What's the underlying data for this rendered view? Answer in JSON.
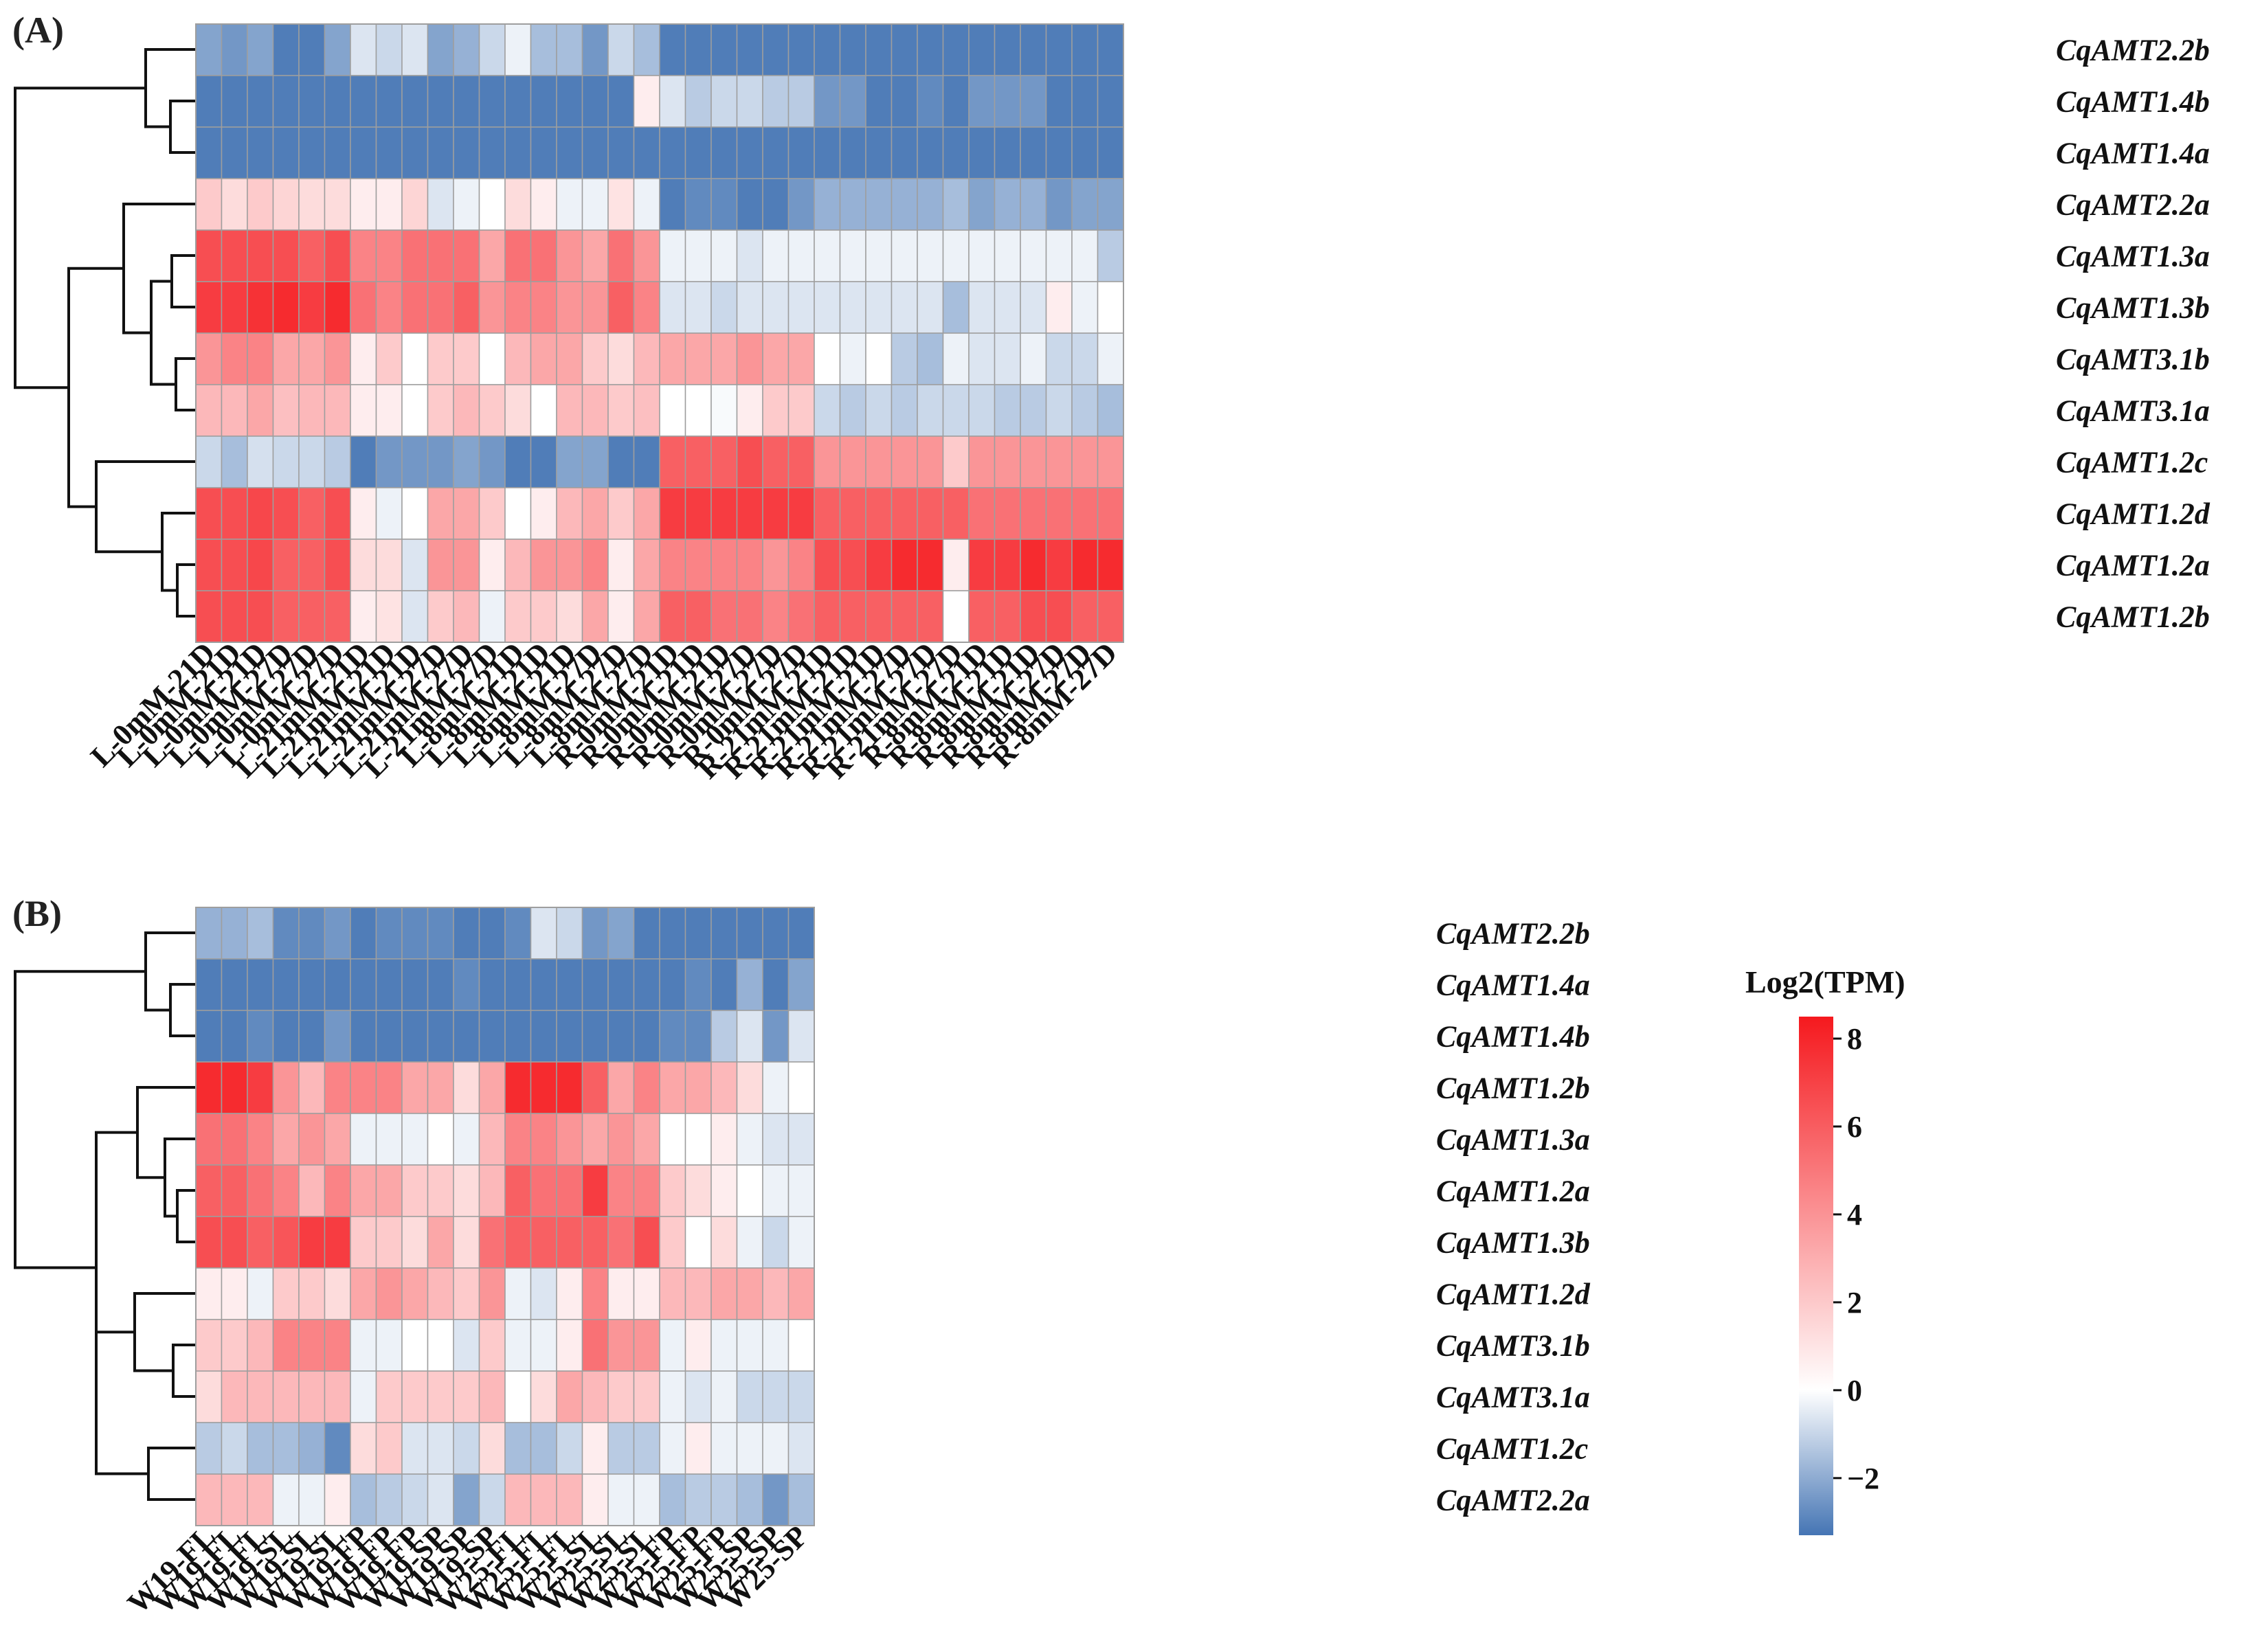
{
  "colors": {
    "low": "#4575b4",
    "mid": "#ffffff",
    "high": "#f5191e",
    "grid": "#9e9e9e",
    "tree": "#111111"
  },
  "chart_data": [
    {
      "type": "heatmap",
      "panel_label": "(A)",
      "rows": [
        "CqAMT2.2b",
        "CqAMT1.4b",
        "CqAMT1.4a",
        "CqAMT2.2a",
        "CqAMT1.3a",
        "CqAMT1.3b",
        "CqAMT3.1b",
        "CqAMT3.1a",
        "CqAMT1.2c",
        "CqAMT1.2d",
        "CqAMT1.2a",
        "CqAMT1.2b"
      ],
      "columns": [
        "L-0mM-21D",
        "L-0mM-21D",
        "L-0mM-21D",
        "L-0mM-27D",
        "L-0mM-27D",
        "L-0mM-27D",
        "L-21mM-21D",
        "L-21mM-21D",
        "L-21mM-21D",
        "L-21mM-27D",
        "L-21mM-27D",
        "L-21mM-27D",
        "L-8mM-21D",
        "L-8mM-21D",
        "L-8mM-21D",
        "L-8mM-27D",
        "L-8mM-27D",
        "L-8mM-27D",
        "R-0mM-21D",
        "R-0mM-21D",
        "R-0mM-21D",
        "R-0mM-27D",
        "R-0mM-27D",
        "R-0mM-27D",
        "R-21mM-21D",
        "R-21mM-21D",
        "R-21mM-21D",
        "R-21mM-27D",
        "R-21mM-27D",
        "R-21mM-27D",
        "R-8mM-21D",
        "R-8mM-21D",
        "R-8mM-21D",
        "R-8mM-27D",
        "R-8mM-27D",
        "R-8mM-27D"
      ],
      "values": [
        [
          -1.5,
          -2.0,
          -1.5,
          -3.0,
          -3.0,
          -1.5,
          1.0,
          0.5,
          1.0,
          -1.5,
          -1.0,
          0.5,
          1.5,
          -0.5,
          -0.5,
          -2.0,
          0.5,
          -0.5,
          -3.0,
          -3.0,
          -3.0,
          -3.0,
          -3.0,
          -3.0,
          -3.0,
          -3.0,
          -3.0,
          -3.0,
          -3.0,
          -3.0,
          -3.0,
          -3.0,
          -3.0,
          -3.0,
          -3.0,
          -3.0
        ],
        [
          -3.0,
          -3.0,
          -3.0,
          -3.0,
          -3.0,
          -3.0,
          -3.0,
          -3.0,
          -3.0,
          -3.0,
          -3.0,
          -3.0,
          -3.0,
          -3.0,
          -3.0,
          -3.0,
          -3.0,
          2.5,
          1.0,
          0.0,
          0.5,
          0.5,
          0.0,
          0.0,
          -2.0,
          -2.0,
          -3.0,
          -3.0,
          -2.5,
          -3.0,
          -2.0,
          -2.0,
          -2.0,
          -3.0,
          -3.0,
          -3.0
        ],
        [
          -3.0,
          -3.0,
          -3.0,
          -3.0,
          -3.0,
          -3.0,
          -3.0,
          -3.0,
          -3.0,
          -3.0,
          -3.0,
          -3.0,
          -3.0,
          -3.0,
          -3.0,
          -3.0,
          -3.0,
          -3.0,
          -3.0,
          -3.0,
          -3.0,
          -3.0,
          -3.0,
          -3.0,
          -3.0,
          -3.0,
          -3.0,
          -3.0,
          -3.0,
          -3.0,
          -3.0,
          -3.0,
          -3.0,
          -3.0,
          -3.0,
          -3.0
        ],
        [
          3.5,
          3.0,
          3.5,
          3.2,
          3.0,
          3.0,
          2.5,
          2.5,
          3.2,
          1.0,
          1.5,
          2.0,
          3.0,
          2.5,
          1.5,
          1.5,
          2.8,
          1.5,
          -3.0,
          -2.5,
          -2.5,
          -3.0,
          -3.0,
          -2.0,
          -1.0,
          -1.0,
          -1.0,
          -1.0,
          -1.0,
          -0.5,
          -1.5,
          -1.0,
          -1.0,
          -2.0,
          -1.5,
          -1.5
        ],
        [
          7.0,
          7.0,
          7.0,
          7.0,
          6.5,
          7.0,
          5.5,
          5.5,
          6.0,
          6.0,
          6.0,
          4.5,
          6.0,
          6.0,
          5.0,
          4.5,
          6.0,
          5.0,
          1.5,
          1.5,
          1.5,
          1.0,
          1.5,
          1.5,
          1.5,
          1.5,
          1.5,
          1.5,
          1.5,
          1.5,
          1.5,
          1.5,
          1.5,
          1.5,
          1.5,
          0.0
        ],
        [
          7.5,
          7.5,
          7.8,
          8.0,
          7.5,
          8.0,
          6.0,
          5.5,
          6.0,
          6.0,
          6.5,
          5.0,
          5.5,
          5.5,
          5.0,
          5.0,
          6.5,
          5.5,
          1.0,
          1.0,
          0.5,
          1.0,
          1.0,
          1.0,
          1.0,
          1.0,
          1.0,
          1.0,
          1.0,
          -0.5,
          1.0,
          1.0,
          1.0,
          2.5,
          1.5,
          2.0
        ],
        [
          5.0,
          5.5,
          5.5,
          4.5,
          4.5,
          5.0,
          2.5,
          3.5,
          2.0,
          3.5,
          3.5,
          2.0,
          4.0,
          4.5,
          4.5,
          3.5,
          3.0,
          4.0,
          4.5,
          4.5,
          4.5,
          5.0,
          4.5,
          4.5,
          2.0,
          1.5,
          2.0,
          0.0,
          -0.5,
          1.5,
          1.0,
          1.0,
          1.5,
          0.5,
          0.5,
          1.5
        ],
        [
          4.0,
          4.0,
          4.5,
          3.8,
          4.0,
          4.0,
          2.5,
          2.5,
          2.0,
          3.5,
          4.0,
          3.5,
          3.0,
          2.0,
          4.0,
          4.0,
          3.5,
          3.8,
          2.0,
          2.0,
          1.8,
          2.5,
          3.5,
          3.5,
          0.5,
          0.0,
          0.5,
          0.0,
          0.5,
          0.5,
          0.5,
          0.0,
          0.0,
          0.5,
          0.0,
          -0.5
        ],
        [
          0.5,
          -0.5,
          0.8,
          0.5,
          0.5,
          0.0,
          -3.0,
          -2.0,
          -2.0,
          -2.0,
          -1.5,
          -2.0,
          -3.0,
          -3.0,
          -1.5,
          -1.5,
          -3.0,
          -3.0,
          6.5,
          6.5,
          6.5,
          7.0,
          6.5,
          6.5,
          5.0,
          5.0,
          5.0,
          5.0,
          5.0,
          3.5,
          5.0,
          5.0,
          5.0,
          5.0,
          5.0,
          5.0
        ],
        [
          7.0,
          7.0,
          7.2,
          7.0,
          6.5,
          7.0,
          2.5,
          1.5,
          2.0,
          4.5,
          4.5,
          3.5,
          2.0,
          2.5,
          4.0,
          4.5,
          3.5,
          4.5,
          7.5,
          7.5,
          7.5,
          7.5,
          7.5,
          7.5,
          6.5,
          6.5,
          6.5,
          6.5,
          6.5,
          6.5,
          6.0,
          6.0,
          6.0,
          6.0,
          6.0,
          6.0
        ],
        [
          7.0,
          7.0,
          7.2,
          6.5,
          6.5,
          7.0,
          3.0,
          3.0,
          1.0,
          5.0,
          5.0,
          2.5,
          4.0,
          5.0,
          5.0,
          5.5,
          2.5,
          4.5,
          5.5,
          5.5,
          5.5,
          5.5,
          5.0,
          5.5,
          7.0,
          7.0,
          7.5,
          8.0,
          8.0,
          2.5,
          7.5,
          7.5,
          8.0,
          7.5,
          8.0,
          8.0
        ],
        [
          7.0,
          7.0,
          7.0,
          6.5,
          6.5,
          6.5,
          2.5,
          2.8,
          1.0,
          3.5,
          4.0,
          1.5,
          3.5,
          3.5,
          3.0,
          4.5,
          2.5,
          4.5,
          6.5,
          6.5,
          6.0,
          6.0,
          5.5,
          6.0,
          6.5,
          6.5,
          6.5,
          6.5,
          6.5,
          2.0,
          6.5,
          6.5,
          7.0,
          7.0,
          6.5,
          6.5
        ]
      ]
    },
    {
      "type": "heatmap",
      "panel_label": "(B)",
      "rows": [
        "CqAMT2.2b",
        "CqAMT1.4a",
        "CqAMT1.4b",
        "CqAMT1.2b",
        "CqAMT1.3a",
        "CqAMT1.2a",
        "CqAMT1.3b",
        "CqAMT1.2d",
        "CqAMT3.1b",
        "CqAMT3.1a",
        "CqAMT1.2c",
        "CqAMT2.2a"
      ],
      "columns": [
        "W19-FL",
        "W19-FL",
        "W19-FL",
        "W19-SL",
        "W19-SL",
        "W19-SL",
        "W19-FP",
        "W19-FP",
        "W19-FP",
        "W19-SP",
        "W19-SP",
        "W19-SP",
        "W25-FL",
        "W25-FL",
        "W25-FL",
        "W25-SL",
        "W25-SL",
        "W25-SL",
        "W25-FP",
        "W25-FP",
        "W25-FP",
        "W25-SP",
        "W25-SP",
        "W25-SP"
      ],
      "values": [
        [
          -1.0,
          -1.0,
          -0.5,
          -2.5,
          -2.5,
          -2.0,
          -3.0,
          -2.5,
          -2.5,
          -2.5,
          -3.0,
          -3.0,
          -2.5,
          1.0,
          0.5,
          -2.0,
          -1.5,
          -3.0,
          -3.0,
          -3.0,
          -3.0,
          -3.0,
          -3.0,
          -3.0
        ],
        [
          -3.0,
          -3.0,
          -3.0,
          -3.0,
          -3.0,
          -3.0,
          -3.0,
          -3.0,
          -3.0,
          -3.0,
          -2.5,
          -3.0,
          -3.0,
          -3.0,
          -3.0,
          -3.0,
          -3.0,
          -3.0,
          -3.0,
          -2.5,
          -3.0,
          -1.0,
          -3.0,
          -1.5
        ],
        [
          -3.0,
          -3.0,
          -2.5,
          -3.0,
          -3.0,
          -2.0,
          -3.0,
          -3.0,
          -3.0,
          -3.0,
          -3.0,
          -3.0,
          -3.0,
          -3.0,
          -3.0,
          -3.0,
          -3.0,
          -3.0,
          -2.5,
          -2.5,
          0.0,
          1.0,
          -2.0,
          1.0
        ],
        [
          8.0,
          8.0,
          7.5,
          5.0,
          4.0,
          5.5,
          5.5,
          5.5,
          4.5,
          4.5,
          3.0,
          4.5,
          8.0,
          8.0,
          8.0,
          6.5,
          4.5,
          5.5,
          4.5,
          4.5,
          4.0,
          3.0,
          1.5,
          2.0
        ],
        [
          6.0,
          6.0,
          5.5,
          4.5,
          5.0,
          4.5,
          1.5,
          1.5,
          1.5,
          2.0,
          1.5,
          4.0,
          5.5,
          5.5,
          5.0,
          4.5,
          5.0,
          4.5,
          2.0,
          2.0,
          2.5,
          1.5,
          1.0,
          1.0
        ],
        [
          6.5,
          6.5,
          6.0,
          5.5,
          4.0,
          5.5,
          4.5,
          4.5,
          3.5,
          3.5,
          3.0,
          4.0,
          6.5,
          6.0,
          6.0,
          7.5,
          5.5,
          5.5,
          3.5,
          3.0,
          2.5,
          2.0,
          1.5,
          1.5
        ],
        [
          7.0,
          7.0,
          6.5,
          6.8,
          7.5,
          7.5,
          3.5,
          3.5,
          3.0,
          4.5,
          3.0,
          6.0,
          6.5,
          6.5,
          6.5,
          6.5,
          6.0,
          7.0,
          3.5,
          2.0,
          3.0,
          1.5,
          0.5,
          1.5
        ],
        [
          2.5,
          2.5,
          1.5,
          3.5,
          3.5,
          3.0,
          4.5,
          5.0,
          4.5,
          4.0,
          3.5,
          5.0,
          1.5,
          1.0,
          2.5,
          5.5,
          2.5,
          2.5,
          4.0,
          4.0,
          4.5,
          4.5,
          4.0,
          4.5
        ],
        [
          3.5,
          3.5,
          4.0,
          5.5,
          5.5,
          5.5,
          1.5,
          1.5,
          2.0,
          2.0,
          1.0,
          3.5,
          1.5,
          1.5,
          2.5,
          6.0,
          5.0,
          5.0,
          1.5,
          2.5,
          1.5,
          1.5,
          1.5,
          2.0
        ],
        [
          3.0,
          4.0,
          4.0,
          4.0,
          4.0,
          4.0,
          1.5,
          3.5,
          3.5,
          3.5,
          3.5,
          4.0,
          2.0,
          3.0,
          4.5,
          4.0,
          3.5,
          3.5,
          1.5,
          1.0,
          1.5,
          0.5,
          0.5,
          0.5
        ],
        [
          0.0,
          0.5,
          -0.5,
          -0.5,
          -1.0,
          -2.5,
          3.0,
          3.5,
          1.0,
          1.0,
          0.5,
          3.0,
          -0.5,
          -0.5,
          0.5,
          2.5,
          0.0,
          0.0,
          1.5,
          2.5,
          1.5,
          1.5,
          1.5,
          1.0
        ],
        [
          4.0,
          4.0,
          4.0,
          1.5,
          1.5,
          2.5,
          -0.5,
          0.0,
          0.5,
          1.0,
          -1.5,
          0.5,
          4.0,
          4.0,
          4.0,
          2.5,
          1.5,
          1.5,
          -0.5,
          0.0,
          0.0,
          -0.5,
          -2.0,
          -0.5
        ]
      ]
    }
  ],
  "legend": {
    "title": "Log2(TPM)",
    "min": -3.3,
    "max": 8.5,
    "ticks": [
      "8",
      "6",
      "4",
      "2",
      "0",
      "−2"
    ],
    "tick_values": [
      8,
      6,
      4,
      2,
      0,
      -2
    ]
  }
}
